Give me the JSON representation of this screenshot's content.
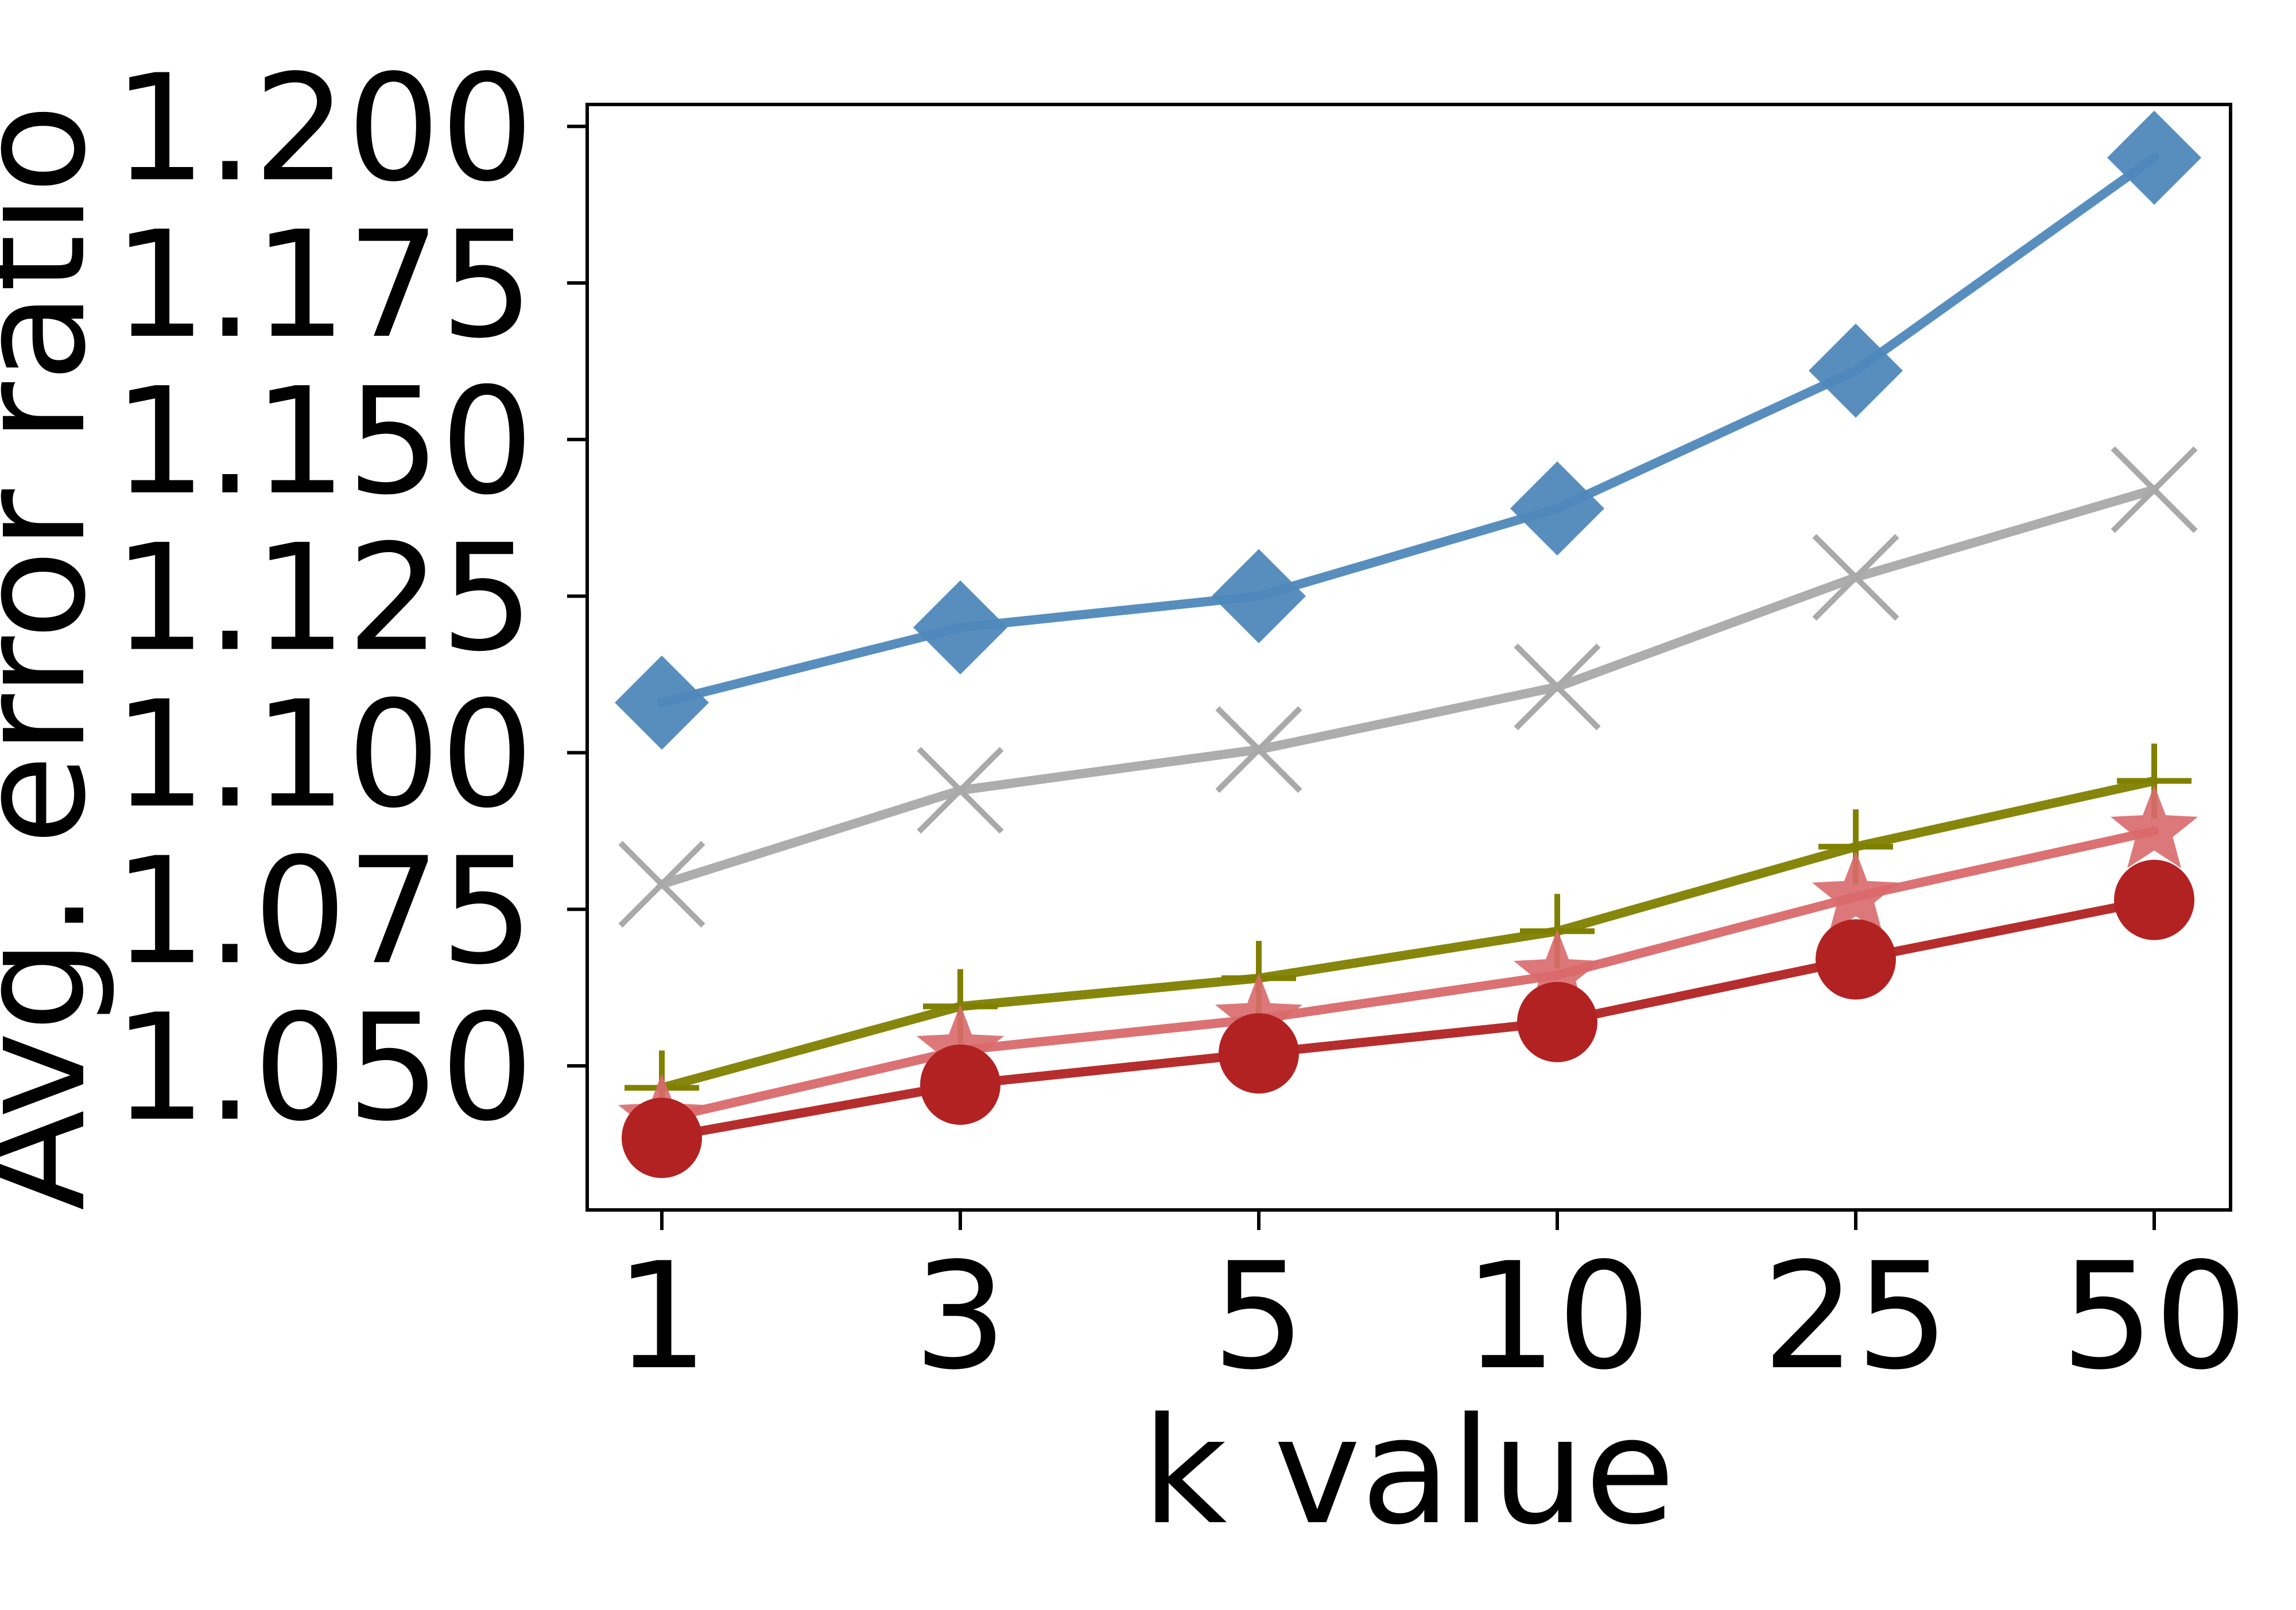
{
  "chart_data": {
    "type": "line",
    "title": "",
    "xlabel": "k value",
    "ylabel": "Avg. error ratio",
    "x_tick_labels": [
      "1",
      "3",
      "5",
      "10",
      "25",
      "50"
    ],
    "y_tick_labels": [
      "1.050",
      "1.075",
      "1.100",
      "1.125",
      "1.150",
      "1.175",
      "1.200"
    ],
    "y_ticks": [
      1.05,
      1.075,
      1.1,
      1.125,
      1.15,
      1.175,
      1.2
    ],
    "ylim": [
      1.027,
      1.2035
    ],
    "x_scale": "categorical",
    "grid": false,
    "legend": "none",
    "series": [
      {
        "marker": "diamond",
        "color": "#4f88bb",
        "values": [
          1.108,
          1.12,
          1.125,
          1.139,
          1.161,
          1.195
        ]
      },
      {
        "marker": "x",
        "color": "#a9a9a9",
        "values": [
          1.079,
          1.094,
          1.1005,
          1.1105,
          1.128,
          1.142
        ]
      },
      {
        "marker": "plus",
        "color": "#808000",
        "values": [
          1.0465,
          1.0595,
          1.064,
          1.0715,
          1.085,
          1.0955
        ]
      },
      {
        "marker": "star",
        "color": "#d9696b",
        "values": [
          1.0415,
          1.0525,
          1.0575,
          1.0645,
          1.077,
          1.0875
        ]
      },
      {
        "marker": "circle",
        "color": "#b22222",
        "values": [
          1.0385,
          1.047,
          1.052,
          1.057,
          1.067,
          1.0765
        ]
      }
    ]
  }
}
